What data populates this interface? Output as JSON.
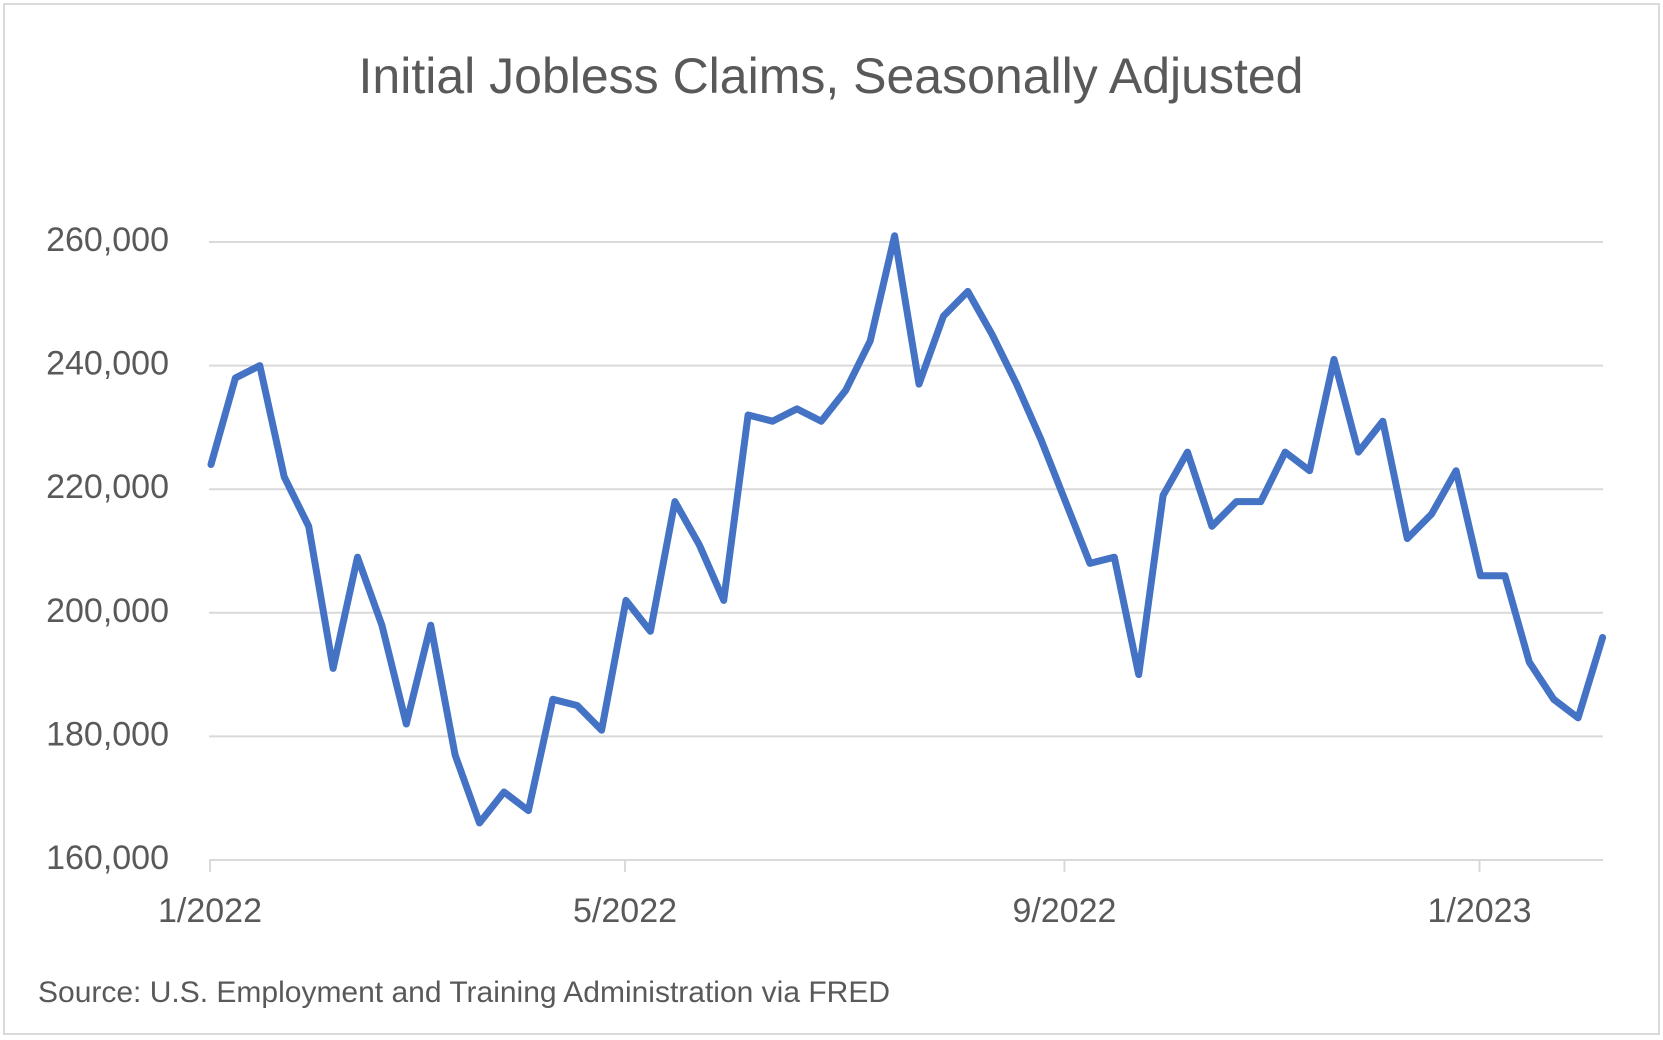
{
  "chart_data": {
    "type": "line",
    "title": "Initial Jobless Claims, Seasonally Adjusted",
    "source": "Source: U.S. Employment and Training Administration via FRED",
    "categories": [
      "1/2022",
      null,
      null,
      null,
      null,
      null,
      null,
      null,
      null,
      null,
      null,
      null,
      null,
      null,
      null,
      null,
      null,
      "5/2022",
      null,
      null,
      null,
      null,
      null,
      null,
      null,
      null,
      null,
      null,
      null,
      null,
      null,
      null,
      null,
      null,
      null,
      "9/2022",
      null,
      null,
      null,
      null,
      null,
      null,
      null,
      null,
      null,
      null,
      null,
      null,
      null,
      null,
      null,
      null,
      "1/2023",
      null,
      null,
      null,
      null,
      null
    ],
    "values": [
      224000,
      238000,
      240000,
      222000,
      214000,
      191000,
      209000,
      198000,
      182000,
      198000,
      177000,
      166000,
      171000,
      168000,
      186000,
      185000,
      181000,
      202000,
      197000,
      218000,
      211000,
      202000,
      232000,
      231000,
      233000,
      231000,
      236000,
      244000,
      261000,
      237000,
      248000,
      252000,
      245000,
      237000,
      228000,
      218000,
      208000,
      209000,
      190000,
      219000,
      226000,
      214000,
      218000,
      218000,
      226000,
      223000,
      241000,
      226000,
      231000,
      212000,
      216000,
      223000,
      206000,
      206000,
      192000,
      186000,
      183000,
      196000
    ],
    "color": "#4472c4",
    "ylim": [
      160000,
      260000
    ],
    "yticks": [
      {
        "value": 160000,
        "label": "160,000"
      },
      {
        "value": 180000,
        "label": "180,000"
      },
      {
        "value": 200000,
        "label": "200,000"
      },
      {
        "value": 220000,
        "label": "220,000"
      },
      {
        "value": 240000,
        "label": "240,000"
      },
      {
        "value": 260000,
        "label": "260,000"
      }
    ],
    "grid": true
  }
}
